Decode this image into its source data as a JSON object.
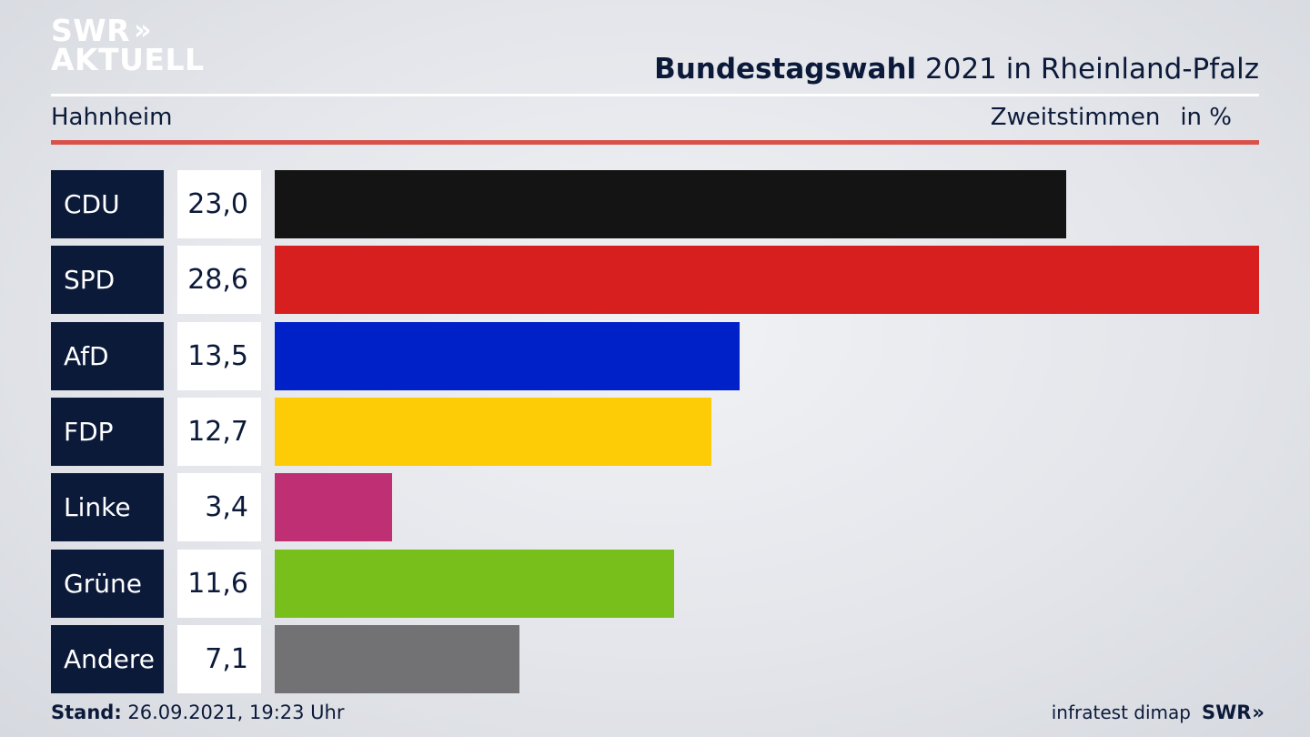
{
  "brand": {
    "logo_line1": "SWR",
    "logo_line2": "AKTUELL",
    "footer_logo": "SWR"
  },
  "header": {
    "title_bold": "Bundestagswahl",
    "title_rest": " 2021 in Rheinland-Pfalz",
    "location": "Hahnheim",
    "measure": "Zweitstimmen",
    "unit": "in %"
  },
  "footer": {
    "stand_label": "Stand:",
    "stand_value": " 26.09.2021, 19:23 Uhr",
    "source": "infratest dimap"
  },
  "chart_data": {
    "type": "bar",
    "orientation": "horizontal",
    "categories": [
      "CDU",
      "SPD",
      "AfD",
      "FDP",
      "Linke",
      "Grüne",
      "Andere"
    ],
    "values": [
      23.0,
      28.6,
      13.5,
      12.7,
      3.4,
      11.6,
      7.1
    ],
    "value_labels": [
      "23,0",
      "28,6",
      "13,5",
      "12,7",
      "3,4",
      "11,6",
      "7,1"
    ],
    "colors": [
      "#141414",
      "#d81f1f",
      "#0021c8",
      "#fecb07",
      "#be2f74",
      "#78bf1b",
      "#727274"
    ],
    "xlim": [
      0,
      28.6
    ],
    "grid": false,
    "legend": "none"
  }
}
